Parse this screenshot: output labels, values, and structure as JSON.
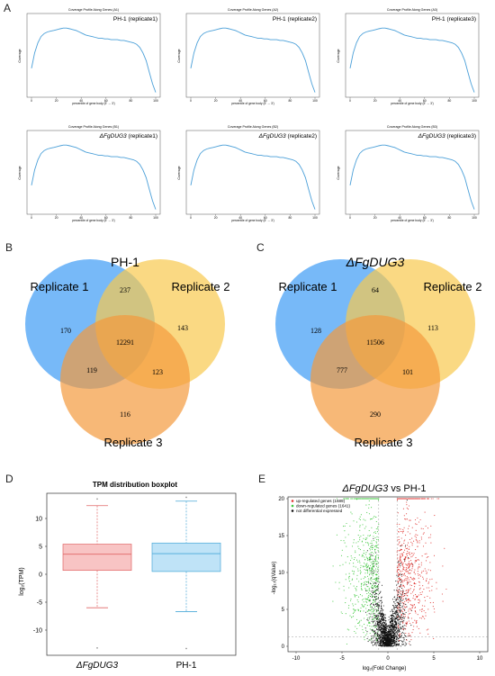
{
  "panels": {
    "A": "A",
    "B": "B",
    "C": "C",
    "D": "D",
    "E": "E"
  },
  "coverage": {
    "plots": [
      {
        "title": "Coverage Profile Along Genes (A1)",
        "label": "PH-1 (replicate1)",
        "italic": false
      },
      {
        "title": "Coverage Profile Along Genes (A2)",
        "label": "PH-1 (replicate2)",
        "italic": false
      },
      {
        "title": "Coverage Profile Along Genes (A3)",
        "label": "PH-1 (replicate3)",
        "italic": false
      },
      {
        "title": "Coverage Profile Along Genes (B1)",
        "label_italic": "ΔFgDUG3",
        "label": " (replicate1)",
        "italic": true
      },
      {
        "title": "Coverage Profile Along Genes (B2)",
        "label_italic": "ΔFgDUG3",
        "label": " (replicate2)",
        "italic": true
      },
      {
        "title": "Coverage Profile Along Genes (B3)",
        "label_italic": "ΔFgDUG3",
        "label": " (replicate3)",
        "italic": true
      }
    ],
    "xlabel": "percentile of gene body (5' → 3')",
    "ylabel": "Coverage",
    "xticks": [
      "0",
      "20",
      "40",
      "60",
      "80",
      "100"
    ],
    "line_color": "#4a9fd8",
    "profile": [
      0.35,
      0.55,
      0.68,
      0.76,
      0.8,
      0.82,
      0.83,
      0.84,
      0.85,
      0.86,
      0.87,
      0.87,
      0.86,
      0.85,
      0.84,
      0.82,
      0.8,
      0.78,
      0.77,
      0.76,
      0.75,
      0.74,
      0.74,
      0.73,
      0.73,
      0.72,
      0.72,
      0.72,
      0.71,
      0.71,
      0.7,
      0.69,
      0.68,
      0.66,
      0.62,
      0.55,
      0.45,
      0.3,
      0.15,
      0.04
    ]
  },
  "venn_B": {
    "title": "PH-1",
    "title_italic": false,
    "labels": {
      "r1": "Replicate 1",
      "r2": "Replicate 2",
      "r3": "Replicate 3"
    },
    "counts": {
      "only1": "170",
      "only2": "143",
      "only3": "116",
      "r12": "237",
      "r13": "119",
      "r23": "123",
      "center": "12291"
    }
  },
  "venn_C": {
    "title": "ΔFgDUG3",
    "title_italic": true,
    "labels": {
      "r1": "Replicate 1",
      "r2": "Replicate 2",
      "r3": "Replicate 3"
    },
    "counts": {
      "only1": "128",
      "only2": "113",
      "only3": "290",
      "r12": "64",
      "r13": "777",
      "r23": "101",
      "center": "11506"
    }
  },
  "venn_colors": {
    "r1": "#3d9bf5",
    "r2": "#f8c94e",
    "r3": "#f39a3d"
  },
  "boxplot": {
    "title": "TPM distribution boxplot",
    "ylabel": "log₂(TPM)",
    "yticks": [
      "-10",
      "-5",
      "0",
      "5",
      "10"
    ],
    "groups": [
      {
        "name": "ΔFgDUG3",
        "italic": true,
        "fill": "#f8c4c4",
        "stroke": "#e06666",
        "min": -6,
        "q1": 0.7,
        "median": 3.6,
        "q3": 5.4,
        "max": 12.3,
        "outlier_hi": 13.5,
        "outlier_lo": -13.2
      },
      {
        "name": "PH-1",
        "italic": false,
        "fill": "#bfe3f7",
        "stroke": "#4aa9d8",
        "min": -6.7,
        "q1": 0.5,
        "median": 3.7,
        "q3": 5.6,
        "max": 13.1,
        "outlier_hi": 13.8,
        "outlier_lo": -13.3
      }
    ]
  },
  "volcano": {
    "title_italic": "ΔFgDUG3",
    "title_rest": " vs PH-1",
    "xlabel": "log₂(Fold Change)",
    "ylabel": "-log₁₀(qValue)",
    "xticks": [
      "-10",
      "-5",
      "0",
      "5",
      "10"
    ],
    "yticks": [
      "0",
      "5",
      "10",
      "15",
      "20"
    ],
    "legend": [
      {
        "label": "up-regulated genes (1689)",
        "color": "#e0322f"
      },
      {
        "label": "down-regulated genes (1641)",
        "color": "#3ec83e"
      },
      {
        "label": "not differential expressed",
        "color": "#111111"
      }
    ]
  }
}
